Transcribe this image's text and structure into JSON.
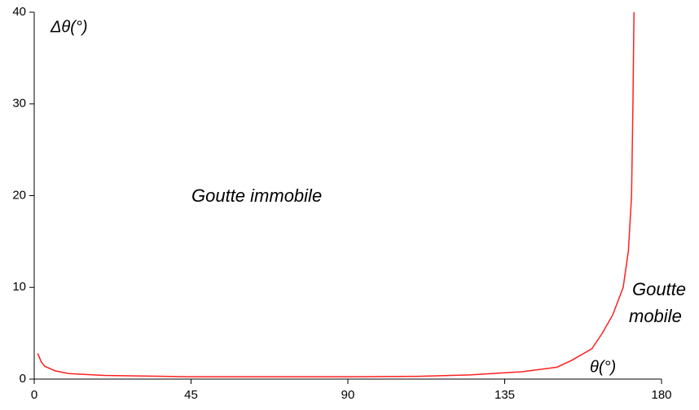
{
  "chart_data": {
    "type": "line",
    "ylabel": "Δθ(°)",
    "xlabel": "θ(°)",
    "annotations": [
      [
        "Goutte immobile"
      ],
      [
        "Goutte",
        "mobile"
      ]
    ],
    "x": [
      1,
      2,
      3,
      6,
      10,
      20,
      45,
      90,
      110,
      125,
      140,
      150,
      154,
      160,
      163,
      166,
      169,
      170.5,
      171.4,
      171.8,
      172.1
    ],
    "series": [
      {
        "name": null,
        "color": "#ff2020",
        "values": [
          2.8,
          1.9,
          1.4,
          0.9,
          0.6,
          0.4,
          0.25,
          0.25,
          0.3,
          0.45,
          0.8,
          1.3,
          2,
          3.3,
          5,
          7,
          10,
          14,
          20,
          30,
          40
        ]
      }
    ],
    "xlim": [
      0,
      180
    ],
    "xticks": [
      0,
      45,
      90,
      135,
      180
    ],
    "ylim": [
      0,
      40
    ],
    "yticks": [
      0,
      10,
      20,
      30,
      40
    ],
    "grid": false
  }
}
